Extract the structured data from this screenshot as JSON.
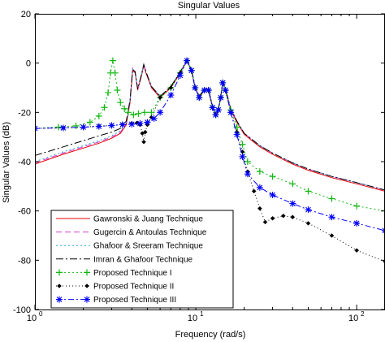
{
  "chart_data": {
    "type": "line",
    "title": "Singular Values",
    "xlabel": "Frequency (rad/s)",
    "ylabel": "Singular Values (dB)",
    "xscale": "log",
    "xlim": [
      1,
      150
    ],
    "ylim": [
      -100,
      20
    ],
    "grid": false,
    "legend_position": "bottom-left",
    "x_ticks": [
      {
        "value": 1,
        "base": "10",
        "exp": "0"
      },
      {
        "value": 10,
        "base": "10",
        "exp": "1"
      },
      {
        "value": 100,
        "base": "10",
        "exp": "2"
      }
    ],
    "y_ticks": [
      {
        "value": 20,
        "label": "20"
      },
      {
        "value": 0,
        "label": "0"
      },
      {
        "value": -20,
        "label": "-20"
      },
      {
        "value": -40,
        "label": "-40"
      },
      {
        "value": -60,
        "label": "-60"
      },
      {
        "value": -80,
        "label": "-80"
      },
      {
        "value": -100,
        "label": "-100"
      }
    ],
    "series": [
      {
        "name": "Gawronski & Juang Technique",
        "color": "#e8000b",
        "dash": "",
        "marker": "none",
        "x": [
          1,
          1.5,
          2,
          2.5,
          3,
          3.4,
          3.7,
          3.9,
          4.05,
          4.2,
          4.35,
          4.6,
          4.75,
          4.9,
          5.3,
          6,
          7,
          8,
          8.8,
          9.4,
          9.9,
          10.5,
          11.3,
          12,
          12.7,
          13.3,
          13.8,
          14.3,
          14.7,
          15.3,
          16.5,
          18,
          20,
          25,
          30,
          40,
          50,
          70,
          100,
          150
        ],
        "y": [
          -41,
          -37,
          -34.5,
          -32.5,
          -30.5,
          -28.5,
          -25,
          -16,
          -3,
          -4,
          -11,
          -5,
          -1,
          -4,
          -10,
          -14,
          -10,
          -4,
          1,
          -3,
          -10,
          -14,
          -11,
          -11,
          -18,
          -21,
          -19,
          -14,
          -8,
          -11,
          -19,
          -24,
          -29,
          -34,
          -37,
          -41,
          -43.5,
          -46.5,
          -49,
          -52
        ]
      },
      {
        "name": "Gugercin & Antoulas Technique",
        "color": "#d53cd5",
        "dash": "7,4",
        "marker": "none",
        "x": [
          1,
          1.5,
          2,
          2.5,
          3,
          3.4,
          3.7,
          3.9,
          4.05,
          4.2,
          4.35,
          4.6,
          4.75,
          4.9,
          5.3,
          6,
          7,
          8,
          8.8,
          9.4,
          9.9,
          10.5,
          11.3,
          12,
          12.7,
          13.3,
          13.8,
          14.3,
          14.7,
          15.3,
          16.5,
          18,
          20,
          25,
          30,
          40,
          50,
          70,
          100,
          150
        ],
        "y": [
          -40.5,
          -36.5,
          -34,
          -32,
          -30,
          -28,
          -24.5,
          -15.5,
          -2,
          -3.5,
          -10.5,
          -4.5,
          -0.5,
          -3.5,
          -9.5,
          -13.5,
          -9.5,
          -3.5,
          1,
          -2.5,
          -9.5,
          -13.5,
          -10.5,
          -10.5,
          -17.5,
          -20.5,
          -18.5,
          -13.5,
          -7.5,
          -10.5,
          -18.5,
          -23.5,
          -28.5,
          -33.5,
          -36.5,
          -40.5,
          -43,
          -46,
          -48.5,
          -51.5
        ]
      },
      {
        "name": "Ghafoor & Sreeram Technique",
        "color": "#21b0c8",
        "dash": "2,3",
        "marker": "none",
        "x": [
          1,
          1.5,
          2,
          2.5,
          3,
          3.4,
          3.7,
          3.9,
          4.05,
          4.2,
          4.35,
          4.6,
          4.75,
          4.9,
          5.3,
          6,
          7,
          8,
          8.8,
          9.4,
          9.9,
          10.5,
          11.3,
          12,
          12.7,
          13.3,
          13.8,
          14.3,
          14.7,
          15.3,
          16.5,
          18,
          20,
          25,
          30,
          40,
          50,
          70,
          100,
          150
        ],
        "y": [
          -40,
          -36,
          -33.5,
          -31.5,
          -29.5,
          -27.5,
          -24,
          -15,
          -2.5,
          -3.5,
          -10.5,
          -4.5,
          -0.5,
          -3.5,
          -9.5,
          -13.5,
          -9.5,
          -3.5,
          1,
          -2.5,
          -9.5,
          -13.5,
          -10.5,
          -10.5,
          -17.5,
          -20.5,
          -18.5,
          -13.5,
          -7.5,
          -10.5,
          -18.5,
          -23.5,
          -28.5,
          -33.5,
          -36.5,
          -40.5,
          -43,
          -46,
          -48.5,
          -51.5
        ]
      },
      {
        "name": "Imran & Ghafoor Technique",
        "color": "#000000",
        "dash": "9,3,2,3",
        "marker": "none",
        "x": [
          1,
          1.5,
          2,
          2.5,
          3,
          3.4,
          3.7,
          3.9,
          4.05,
          4.2,
          4.35,
          4.6,
          4.75,
          4.9,
          5.3,
          6,
          7,
          8,
          8.8,
          9.4,
          9.9,
          10.5,
          11.3,
          12,
          12.7,
          13.3,
          13.8,
          14.3,
          14.7,
          15.3,
          16.5,
          18,
          20,
          25,
          30,
          40,
          50,
          70,
          100,
          150
        ],
        "y": [
          -37.5,
          -34,
          -31.5,
          -29.5,
          -28,
          -26.5,
          -23.5,
          -15,
          -2.5,
          -3.5,
          -10.5,
          -4.5,
          -0.5,
          -3.5,
          -9.5,
          -13.5,
          -9.5,
          -3.5,
          1,
          -2.5,
          -9.5,
          -13.5,
          -10.5,
          -10.5,
          -17.5,
          -20.5,
          -18.5,
          -13.5,
          -7.5,
          -10.5,
          -18.5,
          -23.5,
          -28.5,
          -33.5,
          -36.5,
          -40.5,
          -43,
          -46,
          -48.5,
          -51.5
        ]
      },
      {
        "name": "Proposed Technique I",
        "color": "#11b711",
        "dash": "2,3",
        "marker": "plus",
        "x": [
          1,
          1.4,
          1.8,
          2.2,
          2.5,
          2.7,
          2.85,
          2.95,
          3.05,
          3.15,
          3.25,
          3.4,
          3.6,
          3.8,
          4.1,
          4.4,
          4.8,
          5.3,
          6,
          7,
          8,
          8.8,
          9.4,
          9.9,
          10.5,
          11.3,
          12,
          12.7,
          13.3,
          13.8,
          14.3,
          14.7,
          15.3,
          16.5,
          18,
          19.5,
          21,
          25,
          30,
          40,
          50,
          70,
          100,
          150
        ],
        "y": [
          -26.5,
          -26,
          -25.5,
          -24,
          -21.5,
          -18,
          -12,
          -4,
          1,
          -4,
          -11,
          -16,
          -18.5,
          -20,
          -21,
          -20.5,
          -20,
          -20,
          -14,
          -10,
          -4,
          1,
          -3,
          -10,
          -14,
          -11,
          -11,
          -18,
          -21,
          -19,
          -14,
          -8,
          -11,
          -19,
          -26,
          -33,
          -40,
          -44,
          -46,
          -49,
          -52,
          -55,
          -58,
          -60
        ]
      },
      {
        "name": "Proposed Technique II",
        "color": "#000000",
        "dash": "1,3",
        "marker": "diamond",
        "x": [
          1,
          1.5,
          2,
          2.5,
          3,
          3.5,
          4,
          4.3,
          4.5,
          4.65,
          4.75,
          4.85,
          5,
          5.3,
          6,
          7,
          8,
          8.8,
          9.4,
          9.9,
          10.5,
          11.3,
          12,
          12.7,
          13.3,
          13.8,
          14.3,
          14.7,
          15.3,
          16.5,
          18,
          19.5,
          21,
          23,
          25,
          27,
          30,
          35,
          40,
          50,
          70,
          100,
          150
        ],
        "y": [
          -26.5,
          -26.3,
          -26,
          -25.6,
          -25.3,
          -24.9,
          -24.5,
          -24.3,
          -25,
          -28.5,
          -32,
          -28,
          -25,
          -22,
          -14,
          -10,
          -4,
          1,
          -3,
          -10,
          -14,
          -11,
          -11,
          -18,
          -21,
          -19,
          -14,
          -8,
          -11,
          -20,
          -28,
          -36,
          -44,
          -52,
          -59,
          -64.5,
          -63,
          -62,
          -62.5,
          -65,
          -70,
          -76,
          -80.5
        ]
      },
      {
        "name": "Proposed Technique III",
        "color": "#0000ff",
        "dash": "7,3,2,3",
        "marker": "star",
        "x": [
          1,
          1.5,
          2,
          2.5,
          3,
          3.5,
          4,
          4.5,
          5,
          5.5,
          6,
          7,
          8,
          8.8,
          9.4,
          9.9,
          10.5,
          11.3,
          12,
          12.7,
          13.3,
          13.8,
          14.3,
          14.7,
          15.3,
          16.5,
          18,
          19.5,
          21,
          25,
          30,
          40,
          50,
          70,
          100,
          150
        ],
        "y": [
          -26.5,
          -26.3,
          -26,
          -25.7,
          -25.3,
          -25,
          -24.8,
          -24.5,
          -24,
          -22.5,
          -20,
          -13,
          -5,
          1,
          -3,
          -10,
          -14,
          -11,
          -11,
          -18,
          -21,
          -19,
          -14,
          -8,
          -11,
          -20,
          -29,
          -38,
          -45,
          -50.5,
          -53.5,
          -57,
          -59.5,
          -62.5,
          -65,
          -68
        ]
      }
    ]
  }
}
